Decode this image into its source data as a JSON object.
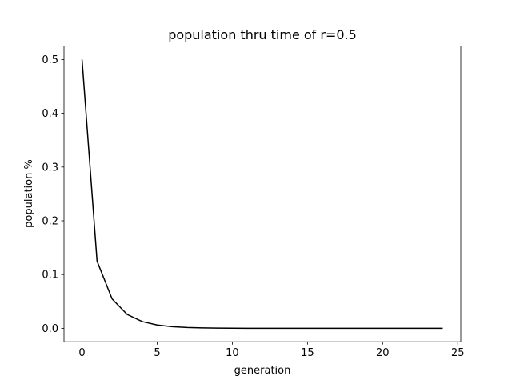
{
  "chart_data": {
    "type": "line",
    "title": "population thru time of r=0.5",
    "x_label": "generation",
    "y_label": "population %",
    "x": [
      0,
      1,
      2,
      3,
      4,
      5,
      6,
      7,
      8,
      9,
      10,
      11,
      12,
      13,
      14,
      15,
      16,
      17,
      18,
      19,
      20,
      21,
      22,
      23,
      24
    ],
    "series": [
      {
        "name": "population",
        "color": "#000000",
        "values": [
          0.5,
          0.125,
          0.0547,
          0.0259,
          0.0126,
          0.0062,
          0.0031,
          0.0015,
          0.0008,
          0.0004,
          0.0002,
          0.0001,
          5e-05,
          2e-05,
          1e-05,
          6e-06,
          3e-06,
          1.5e-06,
          8e-07,
          4e-07,
          2e-07,
          1e-07,
          5e-08,
          2e-08,
          1e-08
        ]
      }
    ],
    "xlim": [
      -1.2,
      25.2
    ],
    "xticks": [
      0,
      5,
      10,
      15,
      20,
      25
    ],
    "ylim": [
      -0.025,
      0.525
    ],
    "yticks": [
      {
        "value": 0,
        "label": "0.0"
      },
      0.1,
      0.2,
      0.3,
      0.4,
      0.5
    ],
    "grid": false
  }
}
